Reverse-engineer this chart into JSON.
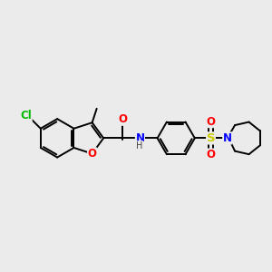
{
  "bg_color": "#ebebeb",
  "bond_color": "#000000",
  "bond_width": 1.4,
  "atom_colors": {
    "O": "#ff0000",
    "N": "#0000ff",
    "Cl": "#00bb00",
    "S": "#cccc00",
    "C": "#000000",
    "H": "#444444"
  },
  "font_size": 8.5,
  "fig_width": 3.0,
  "fig_height": 3.0,
  "dpi": 100
}
